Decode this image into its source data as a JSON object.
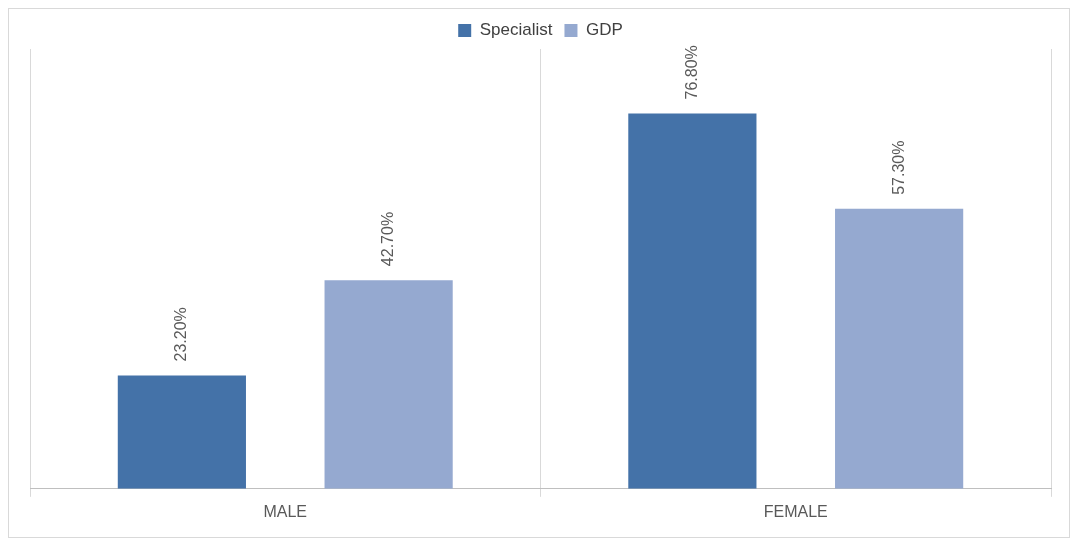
{
  "chart_data": {
    "type": "bar",
    "categories": [
      "MALE",
      "FEMALE"
    ],
    "series": [
      {
        "name": "Specialist",
        "color": "#4472a8",
        "values": [
          23.2,
          76.8
        ],
        "value_labels": [
          "23.20%",
          "76.80%"
        ]
      },
      {
        "name": "GDP",
        "color": "#95a9d0",
        "values": [
          42.7,
          57.3
        ],
        "value_labels": [
          "42.70%",
          "57.30%"
        ]
      }
    ],
    "ylim": [
      0,
      90
    ],
    "grid": "x",
    "legend": "top",
    "tick_labels": "x"
  }
}
